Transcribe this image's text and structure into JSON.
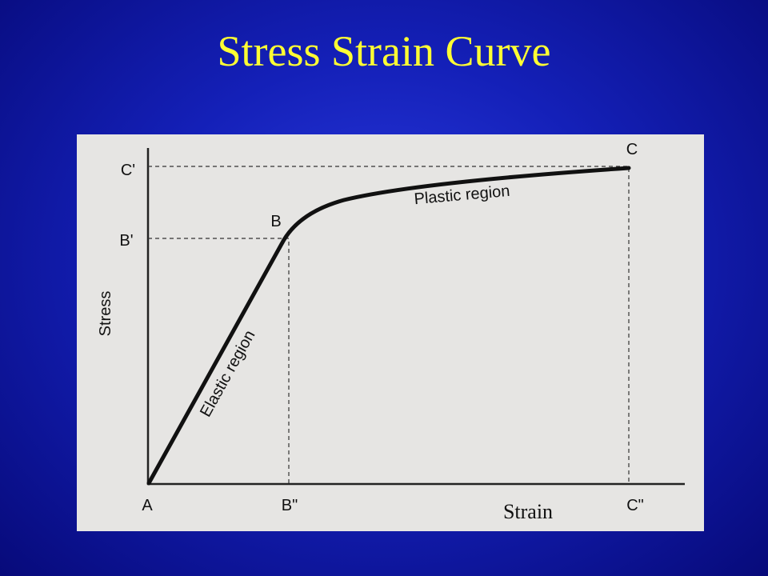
{
  "title": "Stress Strain Curve",
  "diagram": {
    "y_axis_label": "Stress",
    "x_axis_label": "Strain",
    "point_labels": {
      "origin": "A",
      "yield": "B",
      "ultimate": "C",
      "yield_stress": "B'",
      "ultimate_stress": "C'",
      "yield_strain": "B\"",
      "ultimate_strain": "C\""
    },
    "regions": {
      "elastic": "Elastic region",
      "plastic": "Plastic region"
    }
  }
}
